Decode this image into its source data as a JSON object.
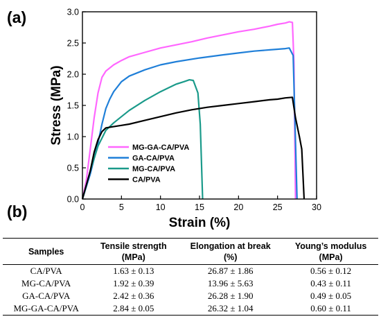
{
  "panels": {
    "a": "(a)",
    "b": "(b)"
  },
  "chart_data": {
    "type": "line",
    "xlabel": "Strain (%)",
    "ylabel": "Stress (MPa)",
    "xlim": [
      0,
      30
    ],
    "ylim": [
      0,
      3.0
    ],
    "xticks": [
      "0",
      "5",
      "10",
      "15",
      "20",
      "25",
      "30"
    ],
    "yticks": [
      "0.0",
      "0.5",
      "1.0",
      "1.5",
      "2.0",
      "2.5",
      "3.0"
    ],
    "grid": false,
    "legend_position": "lower-left",
    "series": [
      {
        "name": "MG-GA-CA/PVA",
        "color": "#ff66ff",
        "x": [
          0,
          0.5,
          1,
          1.5,
          2,
          2.5,
          3,
          4,
          5,
          6,
          8,
          10,
          12,
          14,
          16,
          18,
          20,
          22,
          24,
          25,
          26,
          26.5,
          26.9,
          27.1,
          27.3
        ],
        "y": [
          0,
          0.3,
          0.8,
          1.3,
          1.7,
          1.95,
          2.05,
          2.15,
          2.22,
          2.28,
          2.35,
          2.42,
          2.47,
          2.52,
          2.58,
          2.63,
          2.68,
          2.72,
          2.77,
          2.8,
          2.82,
          2.84,
          2.83,
          2.2,
          0
        ]
      },
      {
        "name": "GA-CA/PVA",
        "color": "#1f7fd8",
        "x": [
          0,
          1,
          2,
          2.5,
          3,
          3.5,
          4,
          5,
          6,
          8,
          10,
          12,
          15,
          18,
          20,
          22,
          24,
          25,
          26,
          26.5,
          27,
          27.5
        ],
        "y": [
          0,
          0.4,
          0.9,
          1.2,
          1.45,
          1.6,
          1.72,
          1.88,
          1.97,
          2.07,
          2.15,
          2.2,
          2.26,
          2.31,
          2.34,
          2.37,
          2.39,
          2.4,
          2.41,
          2.42,
          2.3,
          0
        ]
      },
      {
        "name": "MG-CA/PVA",
        "color": "#1a9a8a",
        "x": [
          0,
          1,
          2,
          3,
          4,
          5,
          6,
          8,
          10,
          12,
          13,
          13.7,
          14.2,
          14.8,
          15.1,
          15.4
        ],
        "y": [
          0,
          0.45,
          0.85,
          1.1,
          1.22,
          1.32,
          1.42,
          1.58,
          1.72,
          1.84,
          1.88,
          1.91,
          1.9,
          1.7,
          1.2,
          0
        ]
      },
      {
        "name": "CA/PVA",
        "color": "#000000",
        "x": [
          0,
          1,
          1.5,
          2,
          2.5,
          3,
          4,
          5,
          6,
          8,
          10,
          12,
          14,
          16,
          18,
          20,
          22,
          24,
          25,
          26,
          26.9,
          27.3,
          27.8,
          28.1,
          28.4
        ],
        "y": [
          0,
          0.45,
          0.75,
          0.95,
          1.08,
          1.14,
          1.16,
          1.18,
          1.2,
          1.26,
          1.32,
          1.38,
          1.43,
          1.47,
          1.5,
          1.53,
          1.56,
          1.59,
          1.6,
          1.62,
          1.63,
          1.3,
          1.0,
          0.8,
          0
        ]
      }
    ]
  },
  "table": {
    "headers": [
      {
        "line1": "Samples",
        "line2": ""
      },
      {
        "line1": "Tensile strength",
        "line2": "(MPa)"
      },
      {
        "line1": "Elongation at break",
        "line2": "(%)"
      },
      {
        "line1": "Young’s modulus",
        "line2": "(MPa)"
      }
    ],
    "rows": [
      [
        "CA/PVA",
        "1.63 ± 0.13",
        "26.87 ± 1.86",
        "0.56 ± 0.12"
      ],
      [
        "MG-CA/PVA",
        "1.92 ± 0.39",
        "13.96 ± 5.63",
        "0.43 ± 0.11"
      ],
      [
        "GA-CA/PVA",
        "2.42 ± 0.36",
        "26.28 ± 1.90",
        "0.49 ± 0.05"
      ],
      [
        "MG-GA-CA/PVA",
        "2.84 ± 0.05",
        "26.32 ± 1.04",
        "0.60 ± 0.11"
      ]
    ]
  }
}
